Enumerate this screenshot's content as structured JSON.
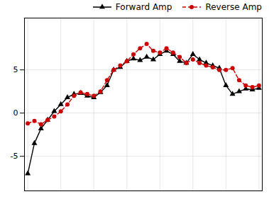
{
  "chart_data": {
    "type": "line",
    "x": [
      0,
      1,
      2,
      3,
      4,
      5,
      6,
      7,
      8,
      9,
      10,
      11,
      12,
      13,
      14,
      15,
      16,
      17,
      18,
      19,
      20,
      21,
      22,
      23,
      24,
      25,
      26,
      27,
      28,
      29,
      30,
      31,
      32,
      33,
      34,
      35
    ],
    "series": [
      {
        "name": "Forward Amp",
        "color": "#000000",
        "marker": "triangle",
        "line_style": "solid",
        "values": [
          -7.0,
          -3.5,
          -1.8,
          -0.8,
          0.2,
          1.0,
          1.8,
          2.2,
          2.3,
          2.0,
          1.8,
          2.4,
          3.2,
          5.0,
          5.3,
          6.0,
          6.3,
          6.1,
          6.5,
          6.2,
          6.8,
          7.2,
          6.8,
          6.0,
          5.8,
          6.8,
          6.2,
          5.8,
          5.5,
          5.2,
          3.2,
          2.2,
          2.5,
          2.8,
          2.7,
          2.9
        ]
      },
      {
        "name": "Reverse Amp",
        "color": "#cc0000",
        "marker": "circle",
        "line_style": "dashed",
        "values": [
          -1.2,
          -0.9,
          -1.3,
          -0.8,
          -0.4,
          0.2,
          1.0,
          2.0,
          2.4,
          2.2,
          2.0,
          2.5,
          3.8,
          5.0,
          5.5,
          6.0,
          6.8,
          7.5,
          8.0,
          7.2,
          7.0,
          7.5,
          7.0,
          6.5,
          5.8,
          6.2,
          5.8,
          5.5,
          5.3,
          5.0,
          5.0,
          5.2,
          3.8,
          3.2,
          3.0,
          3.2
        ]
      }
    ],
    "xlim": [
      -0.5,
      35.5
    ],
    "ylim": [
      -9,
      11
    ],
    "xticks": [
      0,
      5,
      10,
      15,
      20,
      25,
      30,
      35
    ],
    "yticks": [
      -5,
      0,
      5
    ],
    "grid": true,
    "legend": "upper right",
    "tick_labels": "y"
  }
}
